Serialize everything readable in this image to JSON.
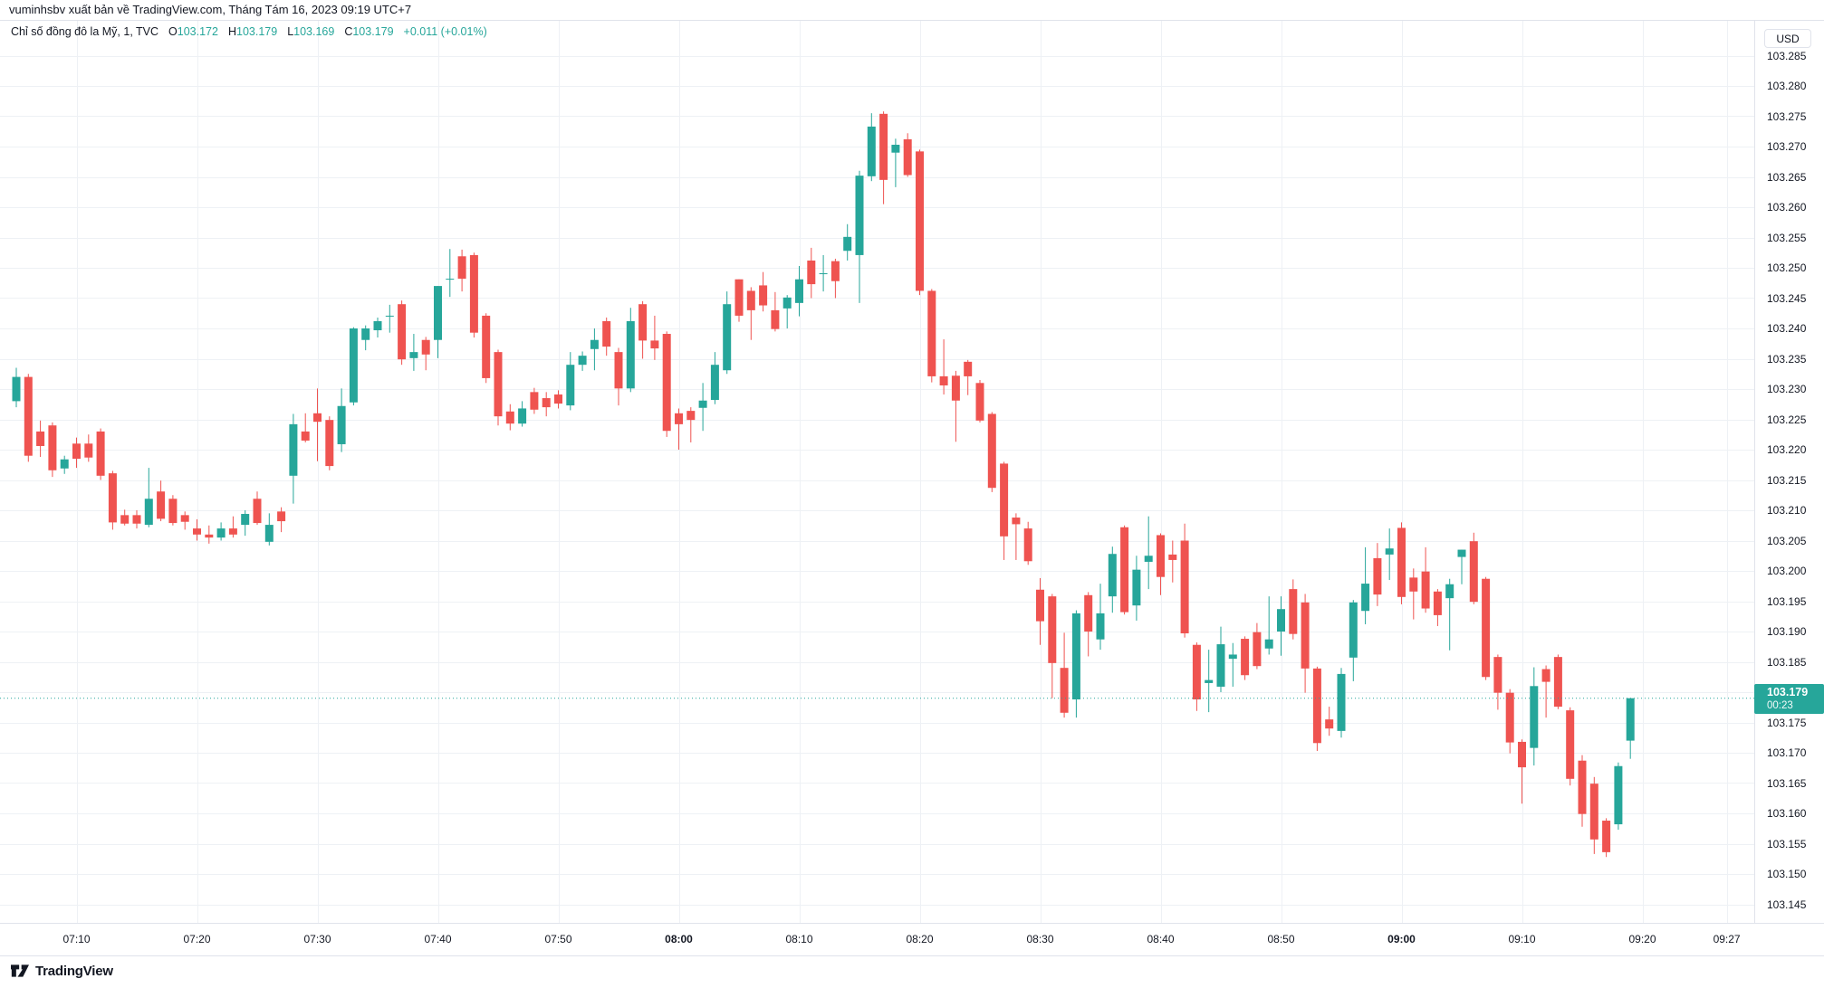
{
  "publish_bar": {
    "text": "vuminhsbv xuất bản về TradingView.com, Tháng Tám 16, 2023 09:19 UTC+7"
  },
  "legend": {
    "symbol_title": "Chỉ số đồng đô la Mỹ, 1, TVC",
    "ohlc": [
      {
        "label": "O",
        "value": "103.172"
      },
      {
        "label": "H",
        "value": "103.179"
      },
      {
        "label": "L",
        "value": "103.169"
      },
      {
        "label": "C",
        "value": "103.179"
      }
    ],
    "change": "+0.011 (+0.01%)"
  },
  "price_axis": {
    "currency": "USD",
    "labels": [
      "103.285",
      "103.280",
      "103.275",
      "103.270",
      "103.265",
      "103.260",
      "103.255",
      "103.250",
      "103.245",
      "103.240",
      "103.235",
      "103.230",
      "103.225",
      "103.220",
      "103.215",
      "103.210",
      "103.205",
      "103.200",
      "103.195",
      "103.190",
      "103.185",
      "103.180",
      "103.175",
      "103.170",
      "103.165",
      "103.160",
      "103.155",
      "103.150",
      "103.145"
    ],
    "last_price": "103.179",
    "countdown": "00:23"
  },
  "time_axis": {
    "labels": [
      {
        "t": "07:10",
        "bold": false
      },
      {
        "t": "07:20",
        "bold": false
      },
      {
        "t": "07:30",
        "bold": false
      },
      {
        "t": "07:40",
        "bold": false
      },
      {
        "t": "07:50",
        "bold": false
      },
      {
        "t": "08:00",
        "bold": true
      },
      {
        "t": "08:10",
        "bold": false
      },
      {
        "t": "08:20",
        "bold": false
      },
      {
        "t": "08:30",
        "bold": false
      },
      {
        "t": "08:40",
        "bold": false
      },
      {
        "t": "08:50",
        "bold": false
      },
      {
        "t": "09:00",
        "bold": true
      },
      {
        "t": "09:10",
        "bold": false
      },
      {
        "t": "09:20",
        "bold": false
      },
      {
        "t": "09:27",
        "bold": false
      }
    ]
  },
  "footer": {
    "brand": "TradingView"
  },
  "colors": {
    "up": "#26a69a",
    "down": "#ef5350",
    "grid": "#eef1f5",
    "border": "#e0e3eb",
    "text": "#131722",
    "badge_bg": "#26a69a",
    "price_line": "#26a69a"
  },
  "chart_data": {
    "type": "candlestick",
    "title": "Chỉ số đồng đô la Mỹ",
    "interval": "1",
    "exchange": "TVC",
    "ylabel_currency": "USD",
    "ylim": [
      103.1419,
      103.2909
    ],
    "price_grid_step": 0.005,
    "time_range_visible": [
      "07:05",
      "09:27"
    ],
    "current_price": 103.179,
    "grid": true,
    "candles": [
      [
        "07:05",
        103.228,
        103.2335,
        103.227,
        103.232
      ],
      [
        "07:06",
        103.232,
        103.2325,
        103.218,
        103.219
      ],
      [
        "07:07",
        103.223,
        103.2248,
        103.2188,
        103.2206
      ],
      [
        "07:08",
        103.224,
        103.2245,
        103.2155,
        103.2166
      ],
      [
        "07:09",
        103.2169,
        103.219,
        103.216,
        103.2184
      ],
      [
        "07:10",
        103.221,
        103.222,
        103.217,
        103.2185
      ],
      [
        "07:11",
        103.221,
        103.2225,
        103.218,
        103.2187
      ],
      [
        "07:12",
        103.223,
        103.2235,
        103.215,
        103.2157
      ],
      [
        "07:13",
        103.2161,
        103.2165,
        103.2068,
        103.208
      ],
      [
        "07:14",
        103.2092,
        103.2101,
        103.2075,
        103.2078
      ],
      [
        "07:15",
        103.2092,
        103.21,
        103.207,
        103.2078
      ],
      [
        "07:16",
        103.2076,
        103.217,
        103.2072,
        103.2119
      ],
      [
        "07:17",
        103.2131,
        103.2149,
        103.2082,
        103.2086
      ],
      [
        "07:18",
        103.2119,
        103.2125,
        103.2075,
        103.2079
      ],
      [
        "07:19",
        103.2092,
        103.2098,
        103.2068,
        103.2081
      ],
      [
        "07:20",
        103.207,
        103.2085,
        103.205,
        103.206
      ],
      [
        "07:21",
        103.206,
        103.2075,
        103.2045,
        103.2055
      ],
      [
        "07:22",
        103.2055,
        103.208,
        103.205,
        103.207
      ],
      [
        "07:23",
        103.207,
        103.209,
        103.2055,
        103.206
      ],
      [
        "07:24",
        103.2076,
        103.21,
        103.2058,
        103.2094
      ],
      [
        "07:25",
        103.2119,
        103.2131,
        103.2076,
        103.2079
      ],
      [
        "07:26",
        103.2048,
        103.2095,
        103.2042,
        103.2076
      ],
      [
        "07:27",
        103.2098,
        103.2105,
        103.2064,
        103.2082
      ],
      [
        "07:28",
        103.2157,
        103.2259,
        103.2111,
        103.2242
      ],
      [
        "07:29",
        103.223,
        103.226,
        103.2212,
        103.2215
      ],
      [
        "07:30",
        103.226,
        103.2301,
        103.2181,
        103.2246
      ],
      [
        "07:31",
        103.2249,
        103.2255,
        103.2166,
        103.2173
      ],
      [
        "07:32",
        103.2209,
        103.2301,
        103.2196,
        103.2272
      ],
      [
        "07:33",
        103.2278,
        103.2402,
        103.2273,
        103.24
      ],
      [
        "07:34",
        103.2381,
        103.2405,
        103.2364,
        103.24
      ],
      [
        "07:35",
        103.2397,
        103.2418,
        103.2385,
        103.2412
      ],
      [
        "07:36",
        103.2421,
        103.2439,
        103.2393,
        103.2421
      ],
      [
        "07:37",
        103.244,
        103.2446,
        103.234,
        103.2349
      ],
      [
        "07:38",
        103.2351,
        103.2391,
        103.233,
        103.2361
      ],
      [
        "07:39",
        103.2381,
        103.2386,
        103.2331,
        103.2357
      ],
      [
        "07:40",
        103.2381,
        103.247,
        103.2351,
        103.247
      ],
      [
        "07:41",
        103.2482,
        103.2531,
        103.2452,
        103.2482
      ],
      [
        "07:42",
        103.2519,
        103.253,
        103.2461,
        103.2482
      ],
      [
        "07:43",
        103.2521,
        103.2525,
        103.2385,
        103.2393
      ],
      [
        "07:44",
        103.2421,
        103.2425,
        103.231,
        103.2318
      ],
      [
        "07:45",
        103.2361,
        103.2365,
        103.224,
        103.2255
      ],
      [
        "07:46",
        103.2263,
        103.2275,
        103.2232,
        103.2243
      ],
      [
        "07:47",
        103.2243,
        103.228,
        103.2238,
        103.2268
      ],
      [
        "07:48",
        103.2295,
        103.2302,
        103.2259,
        103.2266
      ],
      [
        "07:49",
        103.2285,
        103.2295,
        103.2255,
        103.227
      ],
      [
        "07:50",
        103.2291,
        103.2298,
        103.2268,
        103.2276
      ],
      [
        "07:51",
        103.2273,
        103.2361,
        103.2265,
        103.234
      ],
      [
        "07:52",
        103.234,
        103.2362,
        103.233,
        103.2355
      ],
      [
        "07:53",
        103.2366,
        103.24,
        103.2331,
        103.2381
      ],
      [
        "07:54",
        103.2412,
        103.2418,
        103.2355,
        103.237
      ],
      [
        "07:55",
        103.2361,
        103.2368,
        103.2273,
        103.2301
      ],
      [
        "07:56",
        103.2301,
        103.2434,
        103.2295,
        103.2412
      ],
      [
        "07:57",
        103.244,
        103.2445,
        103.235,
        103.238
      ],
      [
        "07:58",
        103.238,
        103.2421,
        103.2348,
        103.2367
      ],
      [
        "07:59",
        103.2391,
        103.2395,
        103.2221,
        103.2231
      ],
      [
        "08:00",
        103.226,
        103.2268,
        103.22,
        103.2242
      ],
      [
        "08:01",
        103.2264,
        103.227,
        103.2212,
        103.2249
      ],
      [
        "08:02",
        103.2269,
        103.231,
        103.2231,
        103.2281
      ],
      [
        "08:03",
        103.2282,
        103.2361,
        103.2275,
        103.234
      ],
      [
        "08:04",
        103.2331,
        103.2461,
        103.2325,
        103.244
      ],
      [
        "08:05",
        103.2481,
        103.2481,
        103.2411,
        103.2421
      ],
      [
        "08:06",
        103.2462,
        103.2468,
        103.2381,
        103.243
      ],
      [
        "08:07",
        103.2471,
        103.2493,
        103.2428,
        103.2438
      ],
      [
        "08:08",
        103.243,
        103.246,
        103.2395,
        103.2399
      ],
      [
        "08:09",
        103.2433,
        103.2455,
        103.24,
        103.2451
      ],
      [
        "08:10",
        103.2442,
        103.2503,
        103.242,
        103.2481
      ],
      [
        "08:11",
        103.2512,
        103.2533,
        103.245,
        103.2473
      ],
      [
        "08:12",
        103.2491,
        103.2521,
        103.2461,
        103.2491
      ],
      [
        "08:13",
        103.2511,
        103.2515,
        103.245,
        103.2478
      ],
      [
        "08:14",
        103.2528,
        103.2572,
        103.2512,
        103.2551
      ],
      [
        "08:15",
        103.2521,
        103.266,
        103.2442,
        103.2652
      ],
      [
        "08:16",
        103.2651,
        103.2755,
        103.2643,
        103.2733
      ],
      [
        "08:17",
        103.2754,
        103.2758,
        103.2605,
        103.2645
      ],
      [
        "08:18",
        103.269,
        103.2713,
        103.2633,
        103.2703
      ],
      [
        "08:19",
        103.2712,
        103.2722,
        103.265,
        103.2653
      ],
      [
        "08:20",
        103.2692,
        103.2695,
        103.2455,
        103.2462
      ],
      [
        "08:21",
        103.2462,
        103.2465,
        103.2311,
        103.2321
      ],
      [
        "08:22",
        103.2321,
        103.2382,
        103.2291,
        103.2306
      ],
      [
        "08:23",
        103.2322,
        103.233,
        103.2213,
        103.2281
      ],
      [
        "08:24",
        103.2345,
        103.2348,
        103.229,
        103.2321
      ],
      [
        "08:25",
        103.231,
        103.2315,
        103.2245,
        103.2248
      ],
      [
        "08:26",
        103.2259,
        103.2262,
        103.213,
        103.2137
      ],
      [
        "08:27",
        103.2177,
        103.218,
        103.2018,
        103.2057
      ],
      [
        "08:28",
        103.2088,
        103.2095,
        103.2018,
        103.2077
      ],
      [
        "08:29",
        103.207,
        103.2081,
        103.201,
        103.2016
      ],
      [
        "08:30",
        103.1969,
        103.1988,
        103.1878,
        103.1917
      ],
      [
        "08:31",
        103.1958,
        103.1962,
        103.179,
        103.1848
      ],
      [
        "08:32",
        103.184,
        103.1898,
        103.1758,
        103.1766
      ],
      [
        "08:33",
        103.1788,
        103.1935,
        103.1758,
        103.193
      ],
      [
        "08:34",
        103.196,
        103.1965,
        103.1859,
        103.19
      ],
      [
        "08:35",
        103.1887,
        103.1979,
        103.187,
        103.193
      ],
      [
        "08:36",
        103.1958,
        103.204,
        103.1931,
        103.2028
      ],
      [
        "08:37",
        103.2072,
        103.2075,
        103.1928,
        103.1932
      ],
      [
        "08:38",
        103.1943,
        103.2025,
        103.1918,
        103.2002
      ],
      [
        "08:39",
        103.2015,
        103.209,
        103.197,
        103.2025
      ],
      [
        "08:40",
        103.2059,
        103.2062,
        103.196,
        103.199
      ],
      [
        "08:41",
        103.2027,
        103.205,
        103.1981,
        103.2018
      ],
      [
        "08:42",
        103.205,
        103.2078,
        103.189,
        103.1897
      ],
      [
        "08:43",
        103.1878,
        103.1882,
        103.1769,
        103.1788
      ],
      [
        "08:44",
        103.1815,
        103.187,
        103.1767,
        103.182
      ],
      [
        "08:45",
        103.1809,
        103.1908,
        103.18,
        103.1879
      ],
      [
        "08:46",
        103.1855,
        103.1881,
        103.1809,
        103.1862
      ],
      [
        "08:47",
        103.1888,
        103.1892,
        103.182,
        103.1828
      ],
      [
        "08:48",
        103.1899,
        103.1914,
        103.1838,
        103.1843
      ],
      [
        "08:49",
        103.1872,
        103.1958,
        103.1862,
        103.1887
      ],
      [
        "08:50",
        103.19,
        103.1958,
        103.186,
        103.1937
      ],
      [
        "08:51",
        103.197,
        103.1986,
        103.1887,
        103.1896
      ],
      [
        "08:52",
        103.1948,
        103.1962,
        103.1799,
        103.1839
      ],
      [
        "08:53",
        103.1839,
        103.1842,
        103.1703,
        103.1716
      ],
      [
        "08:54",
        103.1755,
        103.1776,
        103.1728,
        103.174
      ],
      [
        "08:55",
        103.1736,
        103.184,
        103.1725,
        103.183
      ],
      [
        "08:56",
        103.1857,
        103.1952,
        103.1818,
        103.1948
      ],
      [
        "08:57",
        103.1934,
        103.2039,
        103.1912,
        103.1979
      ],
      [
        "08:58",
        103.2021,
        103.2046,
        103.1942,
        103.1961
      ],
      [
        "08:59",
        103.2027,
        103.207,
        103.1985,
        103.2037
      ],
      [
        "09:00",
        103.2071,
        103.208,
        103.1945,
        103.1957
      ],
      [
        "09:01",
        103.1989,
        103.2004,
        103.192,
        103.1966
      ],
      [
        "09:02",
        103.1999,
        103.2039,
        103.1931,
        103.1938
      ],
      [
        "09:03",
        103.1966,
        103.197,
        103.1909,
        103.1927
      ],
      [
        "09:04",
        103.1955,
        103.1987,
        103.1869,
        103.1978
      ],
      [
        "09:05",
        103.2023,
        103.2035,
        103.1978,
        103.2035
      ],
      [
        "09:06",
        103.2049,
        103.2063,
        103.1945,
        103.1949
      ],
      [
        "09:07",
        103.1987,
        103.199,
        103.182,
        103.1825
      ],
      [
        "09:08",
        103.1858,
        103.1862,
        103.1771,
        103.1799
      ],
      [
        "09:09",
        103.1799,
        103.1805,
        103.1699,
        103.1717
      ],
      [
        "09:10",
        103.1718,
        103.1722,
        103.1616,
        103.1676
      ],
      [
        "09:11",
        103.1708,
        103.1841,
        103.1679,
        103.181
      ],
      [
        "09:12",
        103.1838,
        103.1844,
        103.1758,
        103.1817
      ],
      [
        "09:13",
        103.1858,
        103.1862,
        103.1772,
        103.1776
      ],
      [
        "09:14",
        103.177,
        103.1775,
        103.1646,
        103.1657
      ],
      [
        "09:15",
        103.1687,
        103.1696,
        103.1578,
        103.1599
      ],
      [
        "09:16",
        103.1649,
        103.166,
        103.1533,
        103.1557
      ],
      [
        "09:17",
        103.1588,
        103.1592,
        103.1528,
        103.1536
      ],
      [
        "09:18",
        103.1582,
        103.1684,
        103.1573,
        103.1678
      ],
      [
        "09:19",
        103.172,
        103.179,
        103.169,
        103.179
      ]
    ]
  }
}
